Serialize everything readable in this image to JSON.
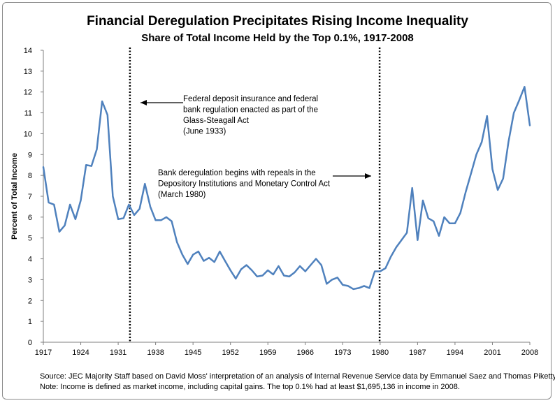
{
  "chart_data": {
    "type": "line",
    "title": "Financial Deregulation Precipitates Rising Income Inequality",
    "subtitle": "Share of Total Income Held by the Top 0.1%, 1917-2008",
    "xlabel": "",
    "ylabel": "Percent of Total Income",
    "xlim": [
      1917,
      2008
    ],
    "ylim": [
      0,
      14
    ],
    "y_ticks": [
      0,
      1,
      2,
      3,
      4,
      5,
      6,
      7,
      8,
      9,
      10,
      11,
      12,
      13,
      14
    ],
    "x_ticks": [
      1917,
      1924,
      1931,
      1938,
      1945,
      1952,
      1959,
      1966,
      1973,
      1980,
      1987,
      1994,
      2001,
      2008
    ],
    "grid": false,
    "line_color": "#4f81bd",
    "series": [
      {
        "x": [
          1917,
          1918,
          1919,
          1920,
          1921,
          1922,
          1923,
          1924,
          1925,
          1926,
          1927,
          1928,
          1929,
          1930,
          1931,
          1932,
          1933,
          1934,
          1935,
          1936,
          1937,
          1938,
          1939,
          1940,
          1941,
          1942,
          1943,
          1944,
          1945,
          1946,
          1947,
          1948,
          1949,
          1950,
          1951,
          1952,
          1953,
          1954,
          1955,
          1956,
          1957,
          1958,
          1959,
          1960,
          1961,
          1962,
          1963,
          1964,
          1965,
          1966,
          1967,
          1968,
          1969,
          1970,
          1971,
          1972,
          1973,
          1974,
          1975,
          1976,
          1977,
          1978,
          1979,
          1980,
          1981,
          1982,
          1983,
          1984,
          1985,
          1986,
          1987,
          1988,
          1989,
          1990,
          1991,
          1992,
          1993,
          1994,
          1995,
          1996,
          1997,
          1998,
          1999,
          2000,
          2001,
          2002,
          2003,
          2004,
          2005,
          2006,
          2007,
          2008
        ],
        "values": [
          8.4,
          6.7,
          6.6,
          5.3,
          5.6,
          6.6,
          5.9,
          6.8,
          8.5,
          8.45,
          9.25,
          11.55,
          10.9,
          7.0,
          5.9,
          5.95,
          6.6,
          6.1,
          6.4,
          7.6,
          6.5,
          5.85,
          5.85,
          6.0,
          5.8,
          4.8,
          4.2,
          3.75,
          4.2,
          4.35,
          3.9,
          4.05,
          3.85,
          4.35,
          3.9,
          3.45,
          3.05,
          3.5,
          3.7,
          3.45,
          3.15,
          3.2,
          3.45,
          3.25,
          3.65,
          3.2,
          3.15,
          3.35,
          3.65,
          3.4,
          3.7,
          4.0,
          3.7,
          2.8,
          3.0,
          3.1,
          2.75,
          2.7,
          2.55,
          2.6,
          2.7,
          2.6,
          3.4,
          3.4,
          3.55,
          4.1,
          4.55,
          4.9,
          5.25,
          7.4,
          4.9,
          6.8,
          5.95,
          5.8,
          5.1,
          6.0,
          5.7,
          5.7,
          6.2,
          7.2,
          8.1,
          9.0,
          9.6,
          10.85,
          8.3,
          7.3,
          7.85,
          9.6,
          11.0,
          11.6,
          12.25,
          10.4
        ]
      }
    ],
    "vlines": [
      {
        "x": 1933.2,
        "style": "dotted"
      },
      {
        "x": 1979.9,
        "style": "dotted"
      }
    ],
    "annotations": [
      {
        "lines": [
          "Federal deposit insurance and federal",
          "bank regulation enacted as part of the",
          "Glass-Steagall Act",
          "(June 1933)"
        ],
        "arrow_direction": "left"
      },
      {
        "lines": [
          "Bank deregulation begins with repeals in the",
          "Depository Institutions and Monetary Control Act",
          "(March 1980)"
        ],
        "arrow_direction": "right"
      }
    ],
    "source_lines": [
      "Source: JEC Majority Staff based on David Moss' interpretation of an analysis of Internal Revenue Service data by Emmanuel Saez and Thomas Piketty.",
      "Note: Income is defined as market income, including capital gains. The top 0.1% had at least $1,695,136 in income in 2008."
    ]
  }
}
